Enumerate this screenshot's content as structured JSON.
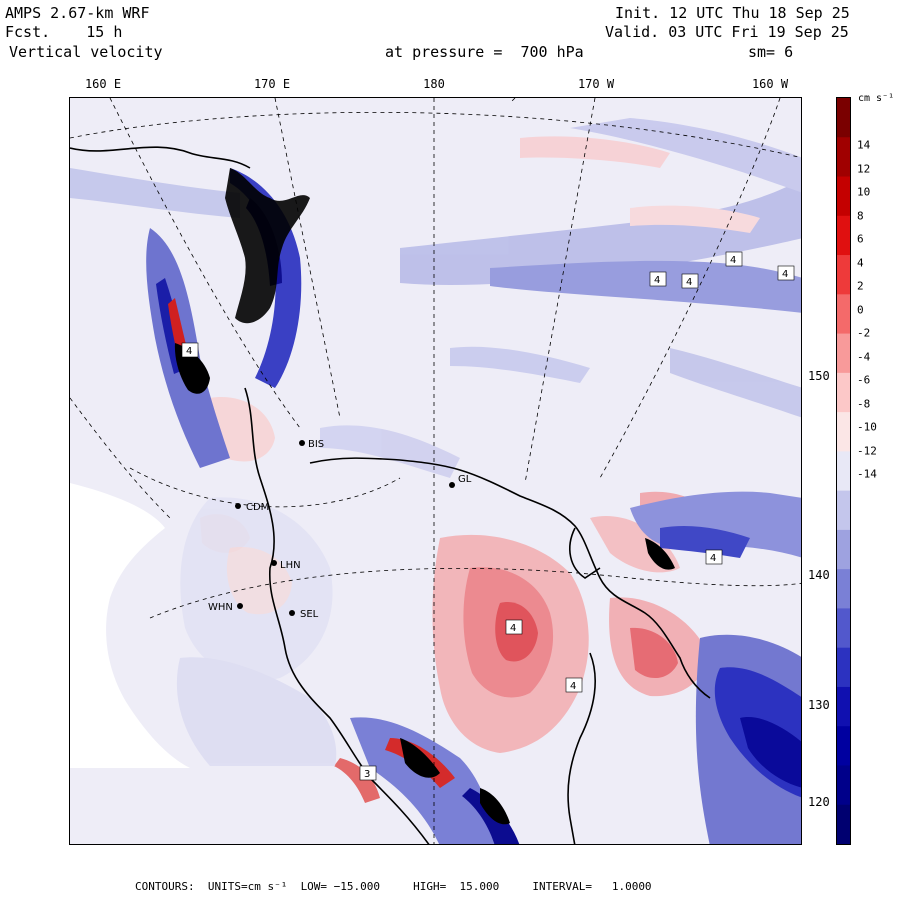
{
  "header": {
    "model": "AMPS 2.67-km WRF",
    "forecast": "Fcst.    15 h",
    "field": "Vertical velocity",
    "init": "Init. 12 UTC Thu 18 Sep 25",
    "valid": "Valid. 03 UTC Fri 19 Sep 25",
    "pressure": "at pressure =  700 hPa",
    "smoothing": "sm= 6"
  },
  "lon_labels": [
    "160 E",
    "170 E",
    "180",
    "170 W",
    "160 W"
  ],
  "lat_labels": [
    "150 W",
    "140 W",
    "130 W",
    "120 W"
  ],
  "colorbar": {
    "unit": "cm s⁻¹",
    "ticks": [
      "14",
      "12",
      "10",
      "8",
      "6",
      "4",
      "2",
      "0",
      "-2",
      "-4",
      "-6",
      "-8",
      "-10",
      "-12",
      "-14"
    ],
    "colors": [
      "#7a0000",
      "#a00000",
      "#c40000",
      "#e01010",
      "#ee3a3a",
      "#f46a6a",
      "#f89a9a",
      "#fcc8c8",
      "#fbe6e6",
      "#e8e8f6",
      "#c4c6ec",
      "#9ea2e0",
      "#7a80d6",
      "#5258cc",
      "#2c32c0",
      "#1010b0",
      "#0000a0",
      "#00008a",
      "#000070"
    ]
  },
  "stations": [
    "BIS",
    "GL",
    "CDM",
    "LHN",
    "WHN",
    "SEL"
  ],
  "contour_labels": [
    "4",
    "4",
    "4",
    "4",
    "4",
    "4",
    "3",
    "4",
    "4"
  ],
  "footer": "CONTOURS:  UNITS=cm s⁻¹  LOW= −15.000     HIGH=  15.000     INTERVAL=   1.0000"
}
